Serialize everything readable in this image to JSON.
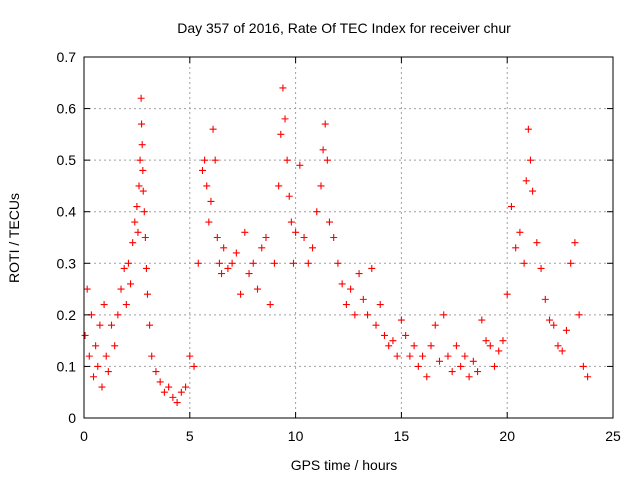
{
  "chart_data": {
    "type": "scatter",
    "title": "Day 357 of 2016, Rate Of TEC Index for receiver chur",
    "xlabel": "GPS time / hours",
    "ylabel": "ROTI / TECUs",
    "xlim": [
      0,
      25
    ],
    "ylim": [
      0,
      0.7
    ],
    "x_ticks": [
      0,
      5,
      10,
      15,
      20,
      25
    ],
    "x_tick_labels": [
      "0",
      "5",
      "10",
      "15",
      "20",
      "25"
    ],
    "y_ticks": [
      0,
      0.1,
      0.2,
      0.3,
      0.4,
      0.5,
      0.6,
      0.7
    ],
    "y_tick_labels": [
      "0",
      "0.1",
      "0.2",
      "0.3",
      "0.4",
      "0.5",
      "0.6",
      "0.7"
    ],
    "grid": true,
    "legend": "none",
    "marker": "plus",
    "color": "#ff0000",
    "series": [
      {
        "x": [
          0.05,
          0.15,
          0.25,
          0.35,
          0.45,
          0.55,
          0.65,
          0.75,
          0.85,
          0.95,
          1.05,
          1.15,
          1.3,
          1.45,
          1.6,
          1.75,
          1.9,
          2.0,
          2.1,
          2.2,
          2.3,
          2.4,
          2.5,
          2.55,
          2.6,
          2.65,
          2.7,
          2.72,
          2.75,
          2.78,
          2.8,
          2.85,
          2.9,
          2.95,
          3.0,
          3.1,
          3.2,
          3.4,
          3.6,
          3.8,
          4.0,
          4.2,
          4.4,
          4.6,
          4.8,
          5.0,
          5.2,
          5.4,
          5.6,
          5.7,
          5.8,
          5.9,
          6.0,
          6.1,
          6.2,
          6.3,
          6.4,
          6.5,
          6.6,
          6.8,
          7.0,
          7.2,
          7.4,
          7.6,
          7.8,
          8.0,
          8.2,
          8.4,
          8.6,
          8.8,
          9.0,
          9.2,
          9.3,
          9.4,
          9.5,
          9.6,
          9.7,
          9.8,
          9.9,
          10.0,
          10.2,
          10.4,
          10.6,
          10.8,
          11.0,
          11.2,
          11.3,
          11.4,
          11.5,
          11.6,
          11.8,
          12.0,
          12.2,
          12.4,
          12.6,
          12.8,
          13.0,
          13.2,
          13.4,
          13.6,
          13.8,
          14.0,
          14.2,
          14.4,
          14.6,
          14.8,
          15.0,
          15.2,
          15.4,
          15.6,
          15.8,
          16.0,
          16.2,
          16.4,
          16.6,
          16.8,
          17.0,
          17.2,
          17.4,
          17.6,
          17.8,
          18.0,
          18.2,
          18.4,
          18.6,
          18.8,
          19.0,
          19.2,
          19.4,
          19.6,
          19.8,
          20.0,
          20.2,
          20.4,
          20.6,
          20.8,
          20.9,
          21.0,
          21.1,
          21.2,
          21.4,
          21.6,
          21.8,
          22.0,
          22.2,
          22.4,
          22.6,
          22.8,
          23.0,
          23.2,
          23.4,
          23.6,
          23.8
        ],
        "y": [
          0.16,
          0.25,
          0.12,
          0.2,
          0.08,
          0.14,
          0.1,
          0.18,
          0.06,
          0.22,
          0.12,
          0.09,
          0.18,
          0.14,
          0.2,
          0.25,
          0.29,
          0.22,
          0.3,
          0.26,
          0.34,
          0.38,
          0.41,
          0.36,
          0.45,
          0.5,
          0.62,
          0.57,
          0.53,
          0.48,
          0.44,
          0.4,
          0.35,
          0.29,
          0.24,
          0.18,
          0.12,
          0.09,
          0.07,
          0.05,
          0.06,
          0.04,
          0.03,
          0.05,
          0.06,
          0.12,
          0.1,
          0.3,
          0.48,
          0.5,
          0.45,
          0.38,
          0.42,
          0.56,
          0.5,
          0.35,
          0.3,
          0.28,
          0.33,
          0.29,
          0.3,
          0.32,
          0.24,
          0.36,
          0.28,
          0.3,
          0.25,
          0.33,
          0.35,
          0.22,
          0.3,
          0.45,
          0.55,
          0.64,
          0.58,
          0.5,
          0.43,
          0.38,
          0.3,
          0.36,
          0.49,
          0.35,
          0.3,
          0.33,
          0.4,
          0.45,
          0.52,
          0.57,
          0.5,
          0.38,
          0.35,
          0.3,
          0.26,
          0.22,
          0.25,
          0.2,
          0.28,
          0.23,
          0.2,
          0.29,
          0.18,
          0.22,
          0.16,
          0.14,
          0.15,
          0.12,
          0.19,
          0.16,
          0.12,
          0.14,
          0.1,
          0.12,
          0.08,
          0.14,
          0.18,
          0.11,
          0.2,
          0.12,
          0.09,
          0.14,
          0.1,
          0.12,
          0.08,
          0.11,
          0.09,
          0.19,
          0.15,
          0.14,
          0.1,
          0.13,
          0.15,
          0.24,
          0.41,
          0.33,
          0.36,
          0.3,
          0.46,
          0.56,
          0.5,
          0.44,
          0.34,
          0.29,
          0.23,
          0.19,
          0.18,
          0.14,
          0.13,
          0.17,
          0.3,
          0.34,
          0.2,
          0.1,
          0.08
        ]
      }
    ]
  }
}
